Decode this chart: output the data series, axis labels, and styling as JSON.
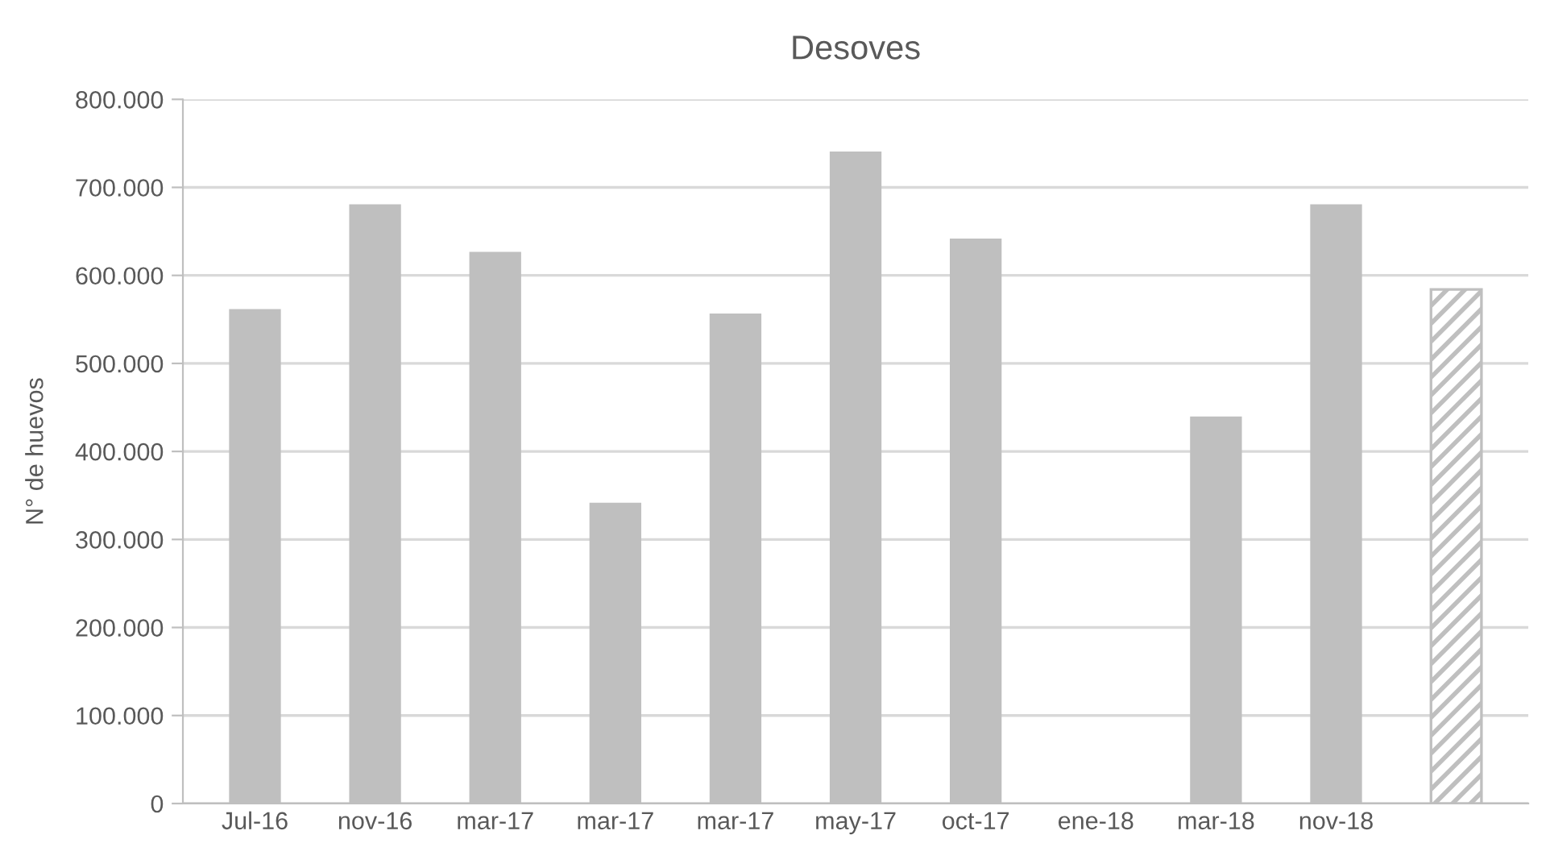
{
  "chart_data": {
    "type": "bar",
    "title": "Desoves",
    "ylabel": "N° de huevos",
    "categories": [
      "Jul-16",
      "nov-16",
      "mar-17",
      "mar-17",
      "mar-17",
      "may-17",
      "oct-17",
      "ene-18",
      "mar-18",
      "nov-18",
      null
    ],
    "series": [
      {
        "color": "#bfbfbf",
        "values": [
          561000,
          680000,
          626000,
          341000,
          556000,
          740000,
          641000,
          null,
          439000,
          680000,
          null
        ]
      },
      {
        "color": "#bfbfbf",
        "values": [
          null,
          null,
          null,
          null,
          null,
          null,
          null,
          null,
          null,
          null,
          584000
        ]
      }
    ],
    "ylim": [
      0,
      800000
    ],
    "yticks": [
      0,
      {
        "value": 100000,
        "label": "100.000"
      },
      {
        "value": 200000,
        "label": "200.000"
      },
      {
        "value": 300000,
        "label": "300.000"
      },
      {
        "value": 400000,
        "label": "400.000"
      },
      {
        "value": 500000,
        "label": "500.000"
      },
      {
        "value": 600000,
        "label": "600.000"
      },
      {
        "value": 700000,
        "label": "700.000"
      },
      {
        "value": 800000,
        "label": "800.000"
      }
    ],
    "grid": "y"
  }
}
